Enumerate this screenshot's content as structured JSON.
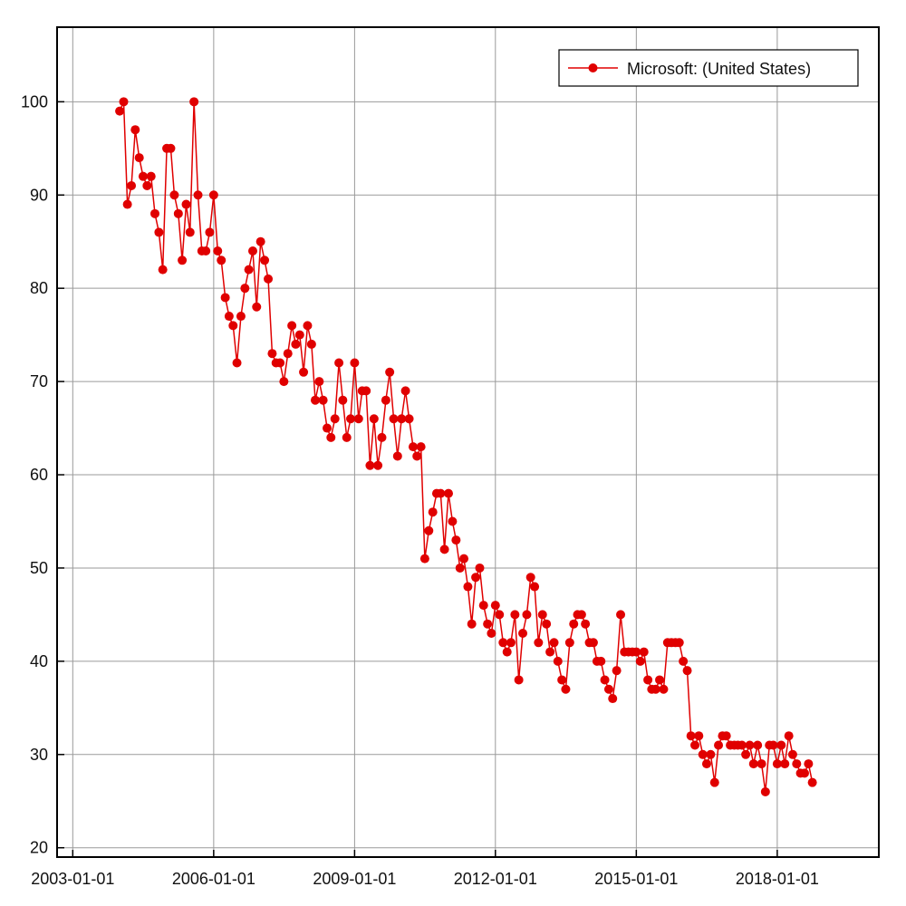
{
  "chart_data": {
    "type": "line",
    "title": "",
    "xlabel": "",
    "ylabel": "",
    "x_start": "2004-01",
    "x_frequency": "monthly",
    "xlim": [
      "2002-09-01",
      "2020-03-01"
    ],
    "ylim": [
      19,
      108
    ],
    "x_ticks": [
      "2003-01-01",
      "2006-01-01",
      "2009-01-01",
      "2012-01-01",
      "2015-01-01",
      "2018-01-01"
    ],
    "y_ticks": [
      20,
      30,
      40,
      50,
      60,
      70,
      80,
      90,
      100
    ],
    "grid": true,
    "legend_position": "top-right",
    "series": [
      {
        "name": "Microsoft: (United States)",
        "color": "#e00000",
        "marker": "circle",
        "values": [
          99,
          100,
          89,
          91,
          97,
          94,
          92,
          91,
          92,
          88,
          86,
          82,
          95,
          95,
          90,
          88,
          83,
          89,
          86,
          100,
          90,
          84,
          84,
          86,
          90,
          84,
          83,
          79,
          77,
          76,
          72,
          77,
          80,
          82,
          84,
          78,
          85,
          83,
          81,
          73,
          72,
          72,
          70,
          73,
          76,
          74,
          75,
          71,
          76,
          74,
          68,
          70,
          68,
          65,
          64,
          66,
          72,
          68,
          64,
          66,
          72,
          66,
          69,
          69,
          61,
          66,
          61,
          64,
          68,
          71,
          66,
          62,
          66,
          69,
          66,
          63,
          62,
          63,
          51,
          54,
          56,
          58,
          58,
          52,
          58,
          55,
          53,
          50,
          51,
          48,
          44,
          49,
          50,
          46,
          44,
          43,
          46,
          45,
          42,
          41,
          42,
          45,
          38,
          43,
          45,
          49,
          48,
          42,
          45,
          44,
          41,
          42,
          40,
          38,
          37,
          42,
          44,
          45,
          45,
          44,
          42,
          42,
          40,
          40,
          38,
          37,
          36,
          39,
          45,
          41,
          41,
          41,
          41,
          40,
          41,
          38,
          37,
          37,
          38,
          37,
          42,
          42,
          42,
          42,
          40,
          39,
          32,
          31,
          32,
          30,
          29,
          30,
          27,
          31,
          32,
          32,
          31,
          31,
          31,
          31,
          30,
          31,
          29,
          31,
          29,
          26,
          31,
          31,
          29,
          31,
          29,
          32,
          30,
          29,
          28,
          28,
          29,
          27
        ]
      }
    ]
  }
}
